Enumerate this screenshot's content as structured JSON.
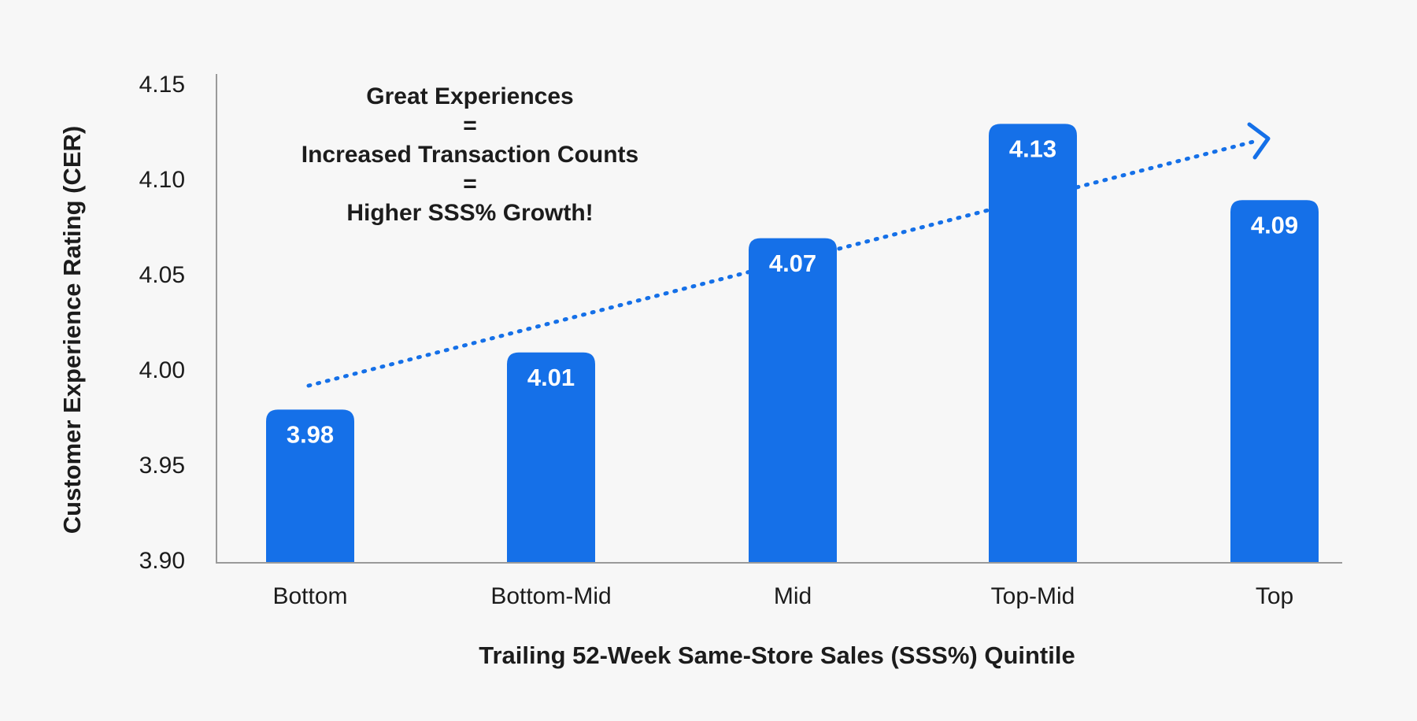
{
  "chart_data": {
    "type": "bar",
    "annotation": [
      "Great Experiences",
      "=",
      "Increased Transaction Counts",
      "=",
      "Higher SSS% Growth!"
    ],
    "x_label": "Trailing 52-Week Same-Store Sales (SSS%) Quintile",
    "y_label": "Customer Experience Rating (CER)",
    "categories": [
      "Bottom",
      "Bottom-Mid",
      "Mid",
      "Top-Mid",
      "Top"
    ],
    "values": [
      3.98,
      4.01,
      4.07,
      4.13,
      4.09
    ],
    "color": "#1570e8",
    "ylim": [
      3.9,
      4.15
    ],
    "yticks": [
      {
        "value": 3.9,
        "label": "3.90"
      },
      3.95,
      {
        "value": 4,
        "label": "4.00"
      },
      4.05,
      {
        "value": 4.1,
        "label": "4.10"
      },
      4.15
    ],
    "grid": false
  }
}
